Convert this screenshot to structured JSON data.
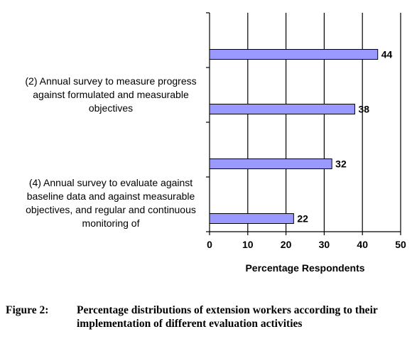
{
  "chart_data": {
    "type": "bar",
    "orientation": "horizontal",
    "categories": [
      "",
      "(2)  Annual  survey to measure progress against formulated and measurable objectives",
      "",
      "(4)  Annual survey to evaluate against baseline data and against measurable objectives, and regular and continuous monitoring of"
    ],
    "values": [
      44,
      38,
      32,
      22
    ],
    "xlabel": "Percentage Respondents",
    "ylabel": "",
    "xlim": [
      0,
      50
    ],
    "xticks": [
      0,
      10,
      20,
      30,
      40,
      50
    ],
    "grid": "vertical",
    "bar_color": "#9999ff",
    "bar_edge_color": "#000000"
  },
  "figure_caption": {
    "label": "Figure 2:",
    "text": "Percentage distributions of extension workers according to their implementation of different evaluation activities"
  }
}
